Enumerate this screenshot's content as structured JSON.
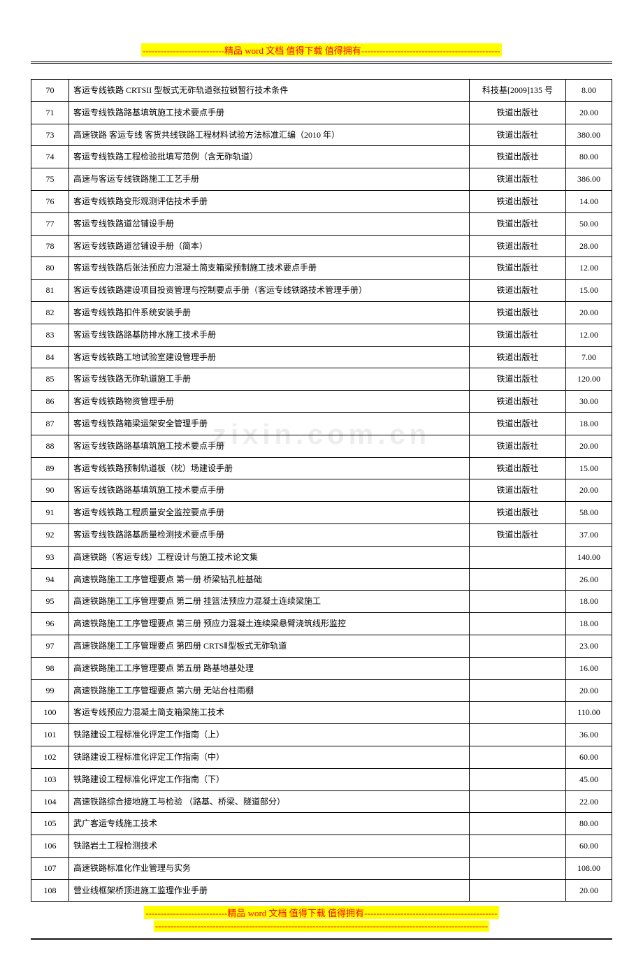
{
  "banner": {
    "dashes_left": "---------------------------",
    "text": "精品 word 文档  值得下载  值得拥有",
    "dashes_right_top": "----------------------------------------------",
    "dashes_right_bottom": "--------------------------------------------",
    "footer_dashes_right_b": "-----------------------------------------------------------------------------------"
  },
  "watermark": "zixin.com.cn",
  "table": {
    "rows": [
      {
        "idx": "70",
        "title": "客运专线铁路 CRTSII 型板式无砟轨道张拉锁暂行技术条件",
        "pub": "科技基[2009]135 号",
        "price": "8.00"
      },
      {
        "idx": "71",
        "title": "客运专线铁路路基填筑施工技术要点手册",
        "pub": "铁道出版社",
        "price": "20.00"
      },
      {
        "idx": "73",
        "title": "高速铁路 客运专线 客货共线铁路工程材料试验方法标准汇编（2010 年）",
        "pub": "铁道出版社",
        "price": "380.00"
      },
      {
        "idx": "74",
        "title": "客运专线铁路工程检验批填写范例（含无砟轨道）",
        "pub": "铁道出版社",
        "price": "80.00"
      },
      {
        "idx": "75",
        "title": "高速与客运专线铁路施工工艺手册",
        "pub": "铁道出版社",
        "price": "386.00"
      },
      {
        "idx": "76",
        "title": "客运专线铁路变形观测评估技术手册",
        "pub": "铁道出版社",
        "price": "14.00"
      },
      {
        "idx": "77",
        "title": "客运专线铁路道岔铺设手册",
        "pub": "铁道出版社",
        "price": "50.00"
      },
      {
        "idx": "78",
        "title": "客运专线铁路道岔铺设手册（简本）",
        "pub": "铁道出版社",
        "price": "28.00"
      },
      {
        "idx": "80",
        "title": "客运专线铁路后张法预应力混凝土简支箱梁预制施工技术要点手册",
        "pub": "铁道出版社",
        "price": "12.00"
      },
      {
        "idx": "81",
        "title": "客运专线铁路建设项目投资管理与控制要点手册（客运专线铁路技术管理手册）",
        "pub": "铁道出版社",
        "price": "15.00"
      },
      {
        "idx": "82",
        "title": "客运专线铁路扣件系统安装手册",
        "pub": "铁道出版社",
        "price": "20.00"
      },
      {
        "idx": "83",
        "title": "客运专线铁路路基防排水施工技术手册",
        "pub": "铁道出版社",
        "price": "12.00"
      },
      {
        "idx": "84",
        "title": "客运专线铁路工地试验室建设管理手册",
        "pub": "铁道出版社",
        "price": "7.00"
      },
      {
        "idx": "85",
        "title": "客运专线铁路无砟轨道施工手册",
        "pub": "铁道出版社",
        "price": "120.00"
      },
      {
        "idx": "86",
        "title": "客运专线铁路物资管理手册",
        "pub": "铁道出版社",
        "price": "30.00"
      },
      {
        "idx": "87",
        "title": "客运专线铁路箱梁运架安全管理手册",
        "pub": "铁道出版社",
        "price": "18.00"
      },
      {
        "idx": "88",
        "title": "客运专线铁路路基填筑施工技术要点手册",
        "pub": "铁道出版社",
        "price": "20.00"
      },
      {
        "idx": "89",
        "title": "客运专线铁路预制轨道板（枕）场建设手册",
        "pub": "铁道出版社",
        "price": "15.00"
      },
      {
        "idx": "90",
        "title": "客运专线铁路路基填筑施工技术要点手册",
        "pub": "铁道出版社",
        "price": "20.00"
      },
      {
        "idx": "91",
        "title": "客运专线铁路工程质量安全监控要点手册",
        "pub": "铁道出版社",
        "price": "58.00"
      },
      {
        "idx": "92",
        "title": "客运专线铁路路基质量检测技术要点手册",
        "pub": "铁道出版社",
        "price": "37.00"
      },
      {
        "idx": "93",
        "title": "高速铁路（客运专线）工程设计与施工技术论文集",
        "pub": "",
        "price": "140.00"
      },
      {
        "idx": "94",
        "title": "高速铁路施工工序管理要点  第一册  桥梁钻孔桩基础",
        "pub": "",
        "price": "26.00"
      },
      {
        "idx": "95",
        "title": "高速铁路施工工序管理要点  第二册  挂篮法预应力混凝土连续梁施工",
        "pub": "",
        "price": "18.00"
      },
      {
        "idx": "96",
        "title": "高速铁路施工工序管理要点  第三册  预应力混凝土连续梁悬臂浇筑线形监控",
        "pub": "",
        "price": "18.00"
      },
      {
        "idx": "97",
        "title": "高速铁路施工工序管理要点  第四册  CRTSⅡ型板式无砟轨道",
        "pub": "",
        "price": "23.00"
      },
      {
        "idx": "98",
        "title": "高速铁路施工工序管理要点  第五册  路基地基处理",
        "pub": "",
        "price": "16.00"
      },
      {
        "idx": "99",
        "title": "高速铁路施工工序管理要点  第六册  无站台柱雨棚",
        "pub": "",
        "price": "20.00"
      },
      {
        "idx": "100",
        "title": "客运专线预应力混凝土简支箱梁施工技术",
        "pub": "",
        "price": "110.00"
      },
      {
        "idx": "101",
        "title": "铁路建设工程标准化评定工作指南（上）",
        "pub": "",
        "price": "36.00"
      },
      {
        "idx": "102",
        "title": "铁路建设工程标准化评定工作指南（中）",
        "pub": "",
        "price": "60.00"
      },
      {
        "idx": "103",
        "title": "铁路建设工程标准化评定工作指南（下）",
        "pub": "",
        "price": "45.00"
      },
      {
        "idx": "104",
        "title": "高速铁路综合接地施工与检验  （路基、桥梁、隧道部分）",
        "pub": "",
        "price": "22.00"
      },
      {
        "idx": "105",
        "title": "武广客运专线施工技术",
        "pub": "",
        "price": "80.00"
      },
      {
        "idx": "106",
        "title": "铁路岩土工程检测技术",
        "pub": "",
        "price": "60.00"
      },
      {
        "idx": "107",
        "title": "高速铁路标准化作业管理与实务",
        "pub": "",
        "price": "108.00"
      },
      {
        "idx": "108",
        "title": "营业线框架桥顶进施工监理作业手册",
        "pub": "",
        "price": "20.00"
      }
    ]
  }
}
